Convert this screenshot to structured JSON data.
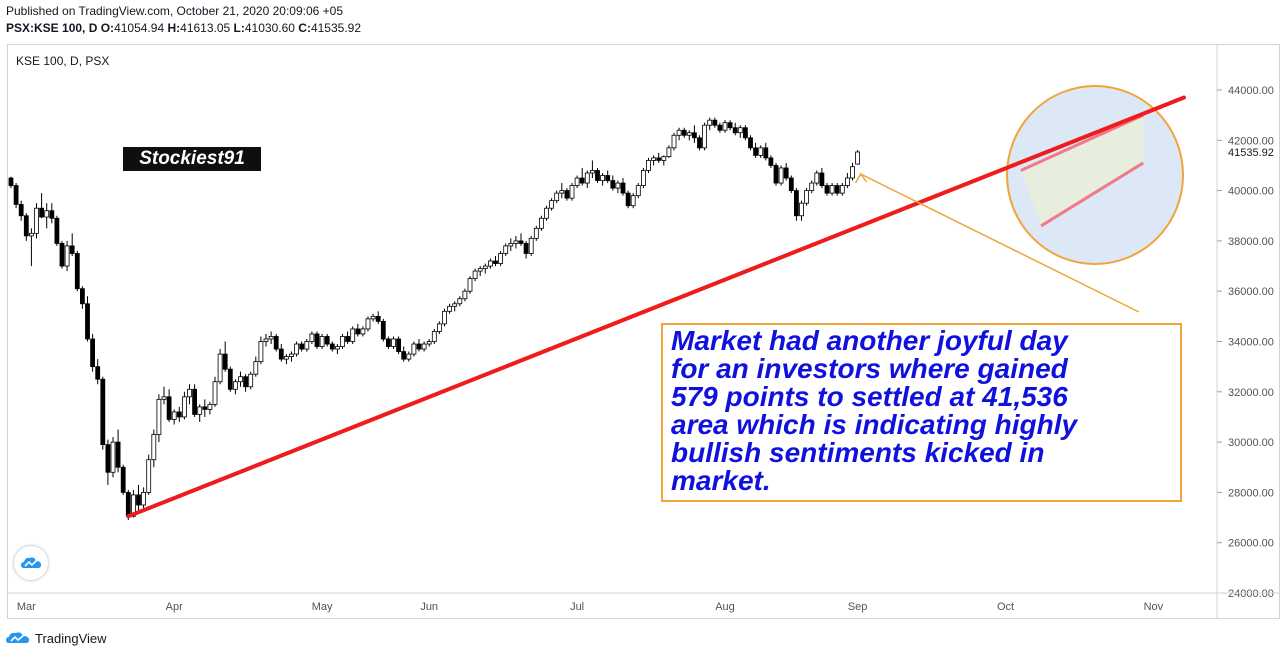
{
  "header": {
    "published": "Published on TradingView.com, October 21, 2020 20:09:06 +05",
    "symbol_line": "PSX:KSE 100, D",
    "o_label": "O:",
    "o_value": "41054.94",
    "h_label": "H:",
    "h_value": "41613.05",
    "l_label": "L:",
    "l_value": "41030.60",
    "c_label": "C:",
    "c_value": "41535.92"
  },
  "chart_label": "KSE 100, D, PSX",
  "watermark": "Stockiest91",
  "annotation": [
    "Market had another joyful day",
    "for an investors where gained",
    "579 points to settled at 41,536",
    "area which is indicating highly",
    "bullish sentiments kicked in",
    "market."
  ],
  "footer": {
    "brand": "TradingView"
  },
  "colors": {
    "trendline": "#ee1c1c",
    "channel": "#f07a8a",
    "circle_fill": "#dde8f6",
    "circle_stroke": "#f0a43a",
    "arrow": "#f0a43a",
    "annotation_text": "#1111dd",
    "annotation_border": "#f0a43a"
  },
  "chart_data": {
    "type": "candlestick",
    "title": "KSE 100, D, PSX",
    "ylim": [
      24000,
      45400
    ],
    "y_ticks": [
      24000,
      26000,
      28000,
      30000,
      32000,
      34000,
      36000,
      38000,
      40000,
      42000,
      44000
    ],
    "y_tick_labels": [
      "24000.00",
      "26000.00",
      "28000.00",
      "30000.00",
      "32000.00",
      "34000.00",
      "36000.00",
      "38000.00",
      "40000.00",
      "42000.00",
      "44000.00"
    ],
    "last_price_label": "41535.92",
    "last_price": 41535.92,
    "x_month_labels": [
      {
        "label": "Mar",
        "day": 3
      },
      {
        "label": "Apr",
        "day": 32
      },
      {
        "label": "May",
        "day": 61
      },
      {
        "label": "Jun",
        "day": 82
      },
      {
        "label": "Jul",
        "day": 111
      },
      {
        "label": "Aug",
        "day": 140
      },
      {
        "label": "Sep",
        "day": 166
      },
      {
        "label": "Oct",
        "day": 195
      },
      {
        "label": "Nov",
        "day": 224
      }
    ],
    "candles_ohlc": [
      [
        40500,
        40550,
        40100,
        40200
      ],
      [
        40200,
        40300,
        39300,
        39450
      ],
      [
        39450,
        39600,
        38800,
        39000
      ],
      [
        39000,
        39100,
        38000,
        38200
      ],
      [
        38200,
        38500,
        37000,
        38300
      ],
      [
        38300,
        39500,
        38100,
        39300
      ],
      [
        39300,
        39900,
        38900,
        38950
      ],
      [
        38950,
        39500,
        38500,
        39200
      ],
      [
        39200,
        39500,
        38700,
        38900
      ],
      [
        38900,
        39000,
        37800,
        37900
      ],
      [
        37900,
        38000,
        36900,
        37000
      ],
      [
        37000,
        38000,
        36800,
        37800
      ],
      [
        37800,
        38300,
        37400,
        37500
      ],
      [
        37500,
        37600,
        36000,
        36100
      ],
      [
        36100,
        36200,
        35300,
        35500
      ],
      [
        35500,
        35800,
        34000,
        34100
      ],
      [
        34100,
        34300,
        32800,
        33000
      ],
      [
        33000,
        33300,
        32300,
        32500
      ],
      [
        32500,
        32600,
        29700,
        29900
      ],
      [
        29900,
        30100,
        28300,
        28800
      ],
      [
        28800,
        30200,
        28600,
        30000
      ],
      [
        30000,
        30500,
        28800,
        29000
      ],
      [
        29000,
        29100,
        27900,
        28000
      ],
      [
        28000,
        28100,
        26900,
        27050
      ],
      [
        27050,
        28100,
        27000,
        27900
      ],
      [
        27900,
        28300,
        27300,
        27500
      ],
      [
        27500,
        28200,
        27300,
        28000
      ],
      [
        28000,
        29500,
        27900,
        29300
      ],
      [
        29300,
        30500,
        29000,
        30300
      ],
      [
        30300,
        31900,
        30000,
        31700
      ],
      [
        31700,
        32200,
        31500,
        31800
      ],
      [
        31800,
        32100,
        30800,
        30900
      ],
      [
        30900,
        31300,
        30700,
        31200
      ],
      [
        31200,
        31400,
        30800,
        31000
      ],
      [
        31000,
        32000,
        30900,
        31800
      ],
      [
        31800,
        32300,
        31500,
        32100
      ],
      [
        32100,
        32300,
        31000,
        31100
      ],
      [
        31100,
        31500,
        30800,
        31400
      ],
      [
        31400,
        31700,
        31000,
        31300
      ],
      [
        31300,
        31600,
        31100,
        31500
      ],
      [
        31500,
        32600,
        31400,
        32400
      ],
      [
        32400,
        33700,
        32300,
        33500
      ],
      [
        33500,
        34000,
        32800,
        32900
      ],
      [
        32900,
        33000,
        32000,
        32100
      ],
      [
        32100,
        32500,
        31900,
        32400
      ],
      [
        32400,
        32800,
        32200,
        32600
      ],
      [
        32600,
        32700,
        32000,
        32200
      ],
      [
        32200,
        32800,
        32100,
        32700
      ],
      [
        32700,
        33400,
        32600,
        33200
      ],
      [
        33200,
        34200,
        33100,
        34000
      ],
      [
        34000,
        34300,
        33800,
        34100
      ],
      [
        34100,
        34400,
        33900,
        34200
      ],
      [
        34200,
        34300,
        33600,
        33700
      ],
      [
        33700,
        33900,
        33200,
        33300
      ],
      [
        33300,
        33500,
        33100,
        33400
      ],
      [
        33400,
        33600,
        33200,
        33500
      ],
      [
        33500,
        34000,
        33400,
        33900
      ],
      [
        33900,
        34000,
        33600,
        33700
      ],
      [
        33700,
        34100,
        33600,
        34000
      ],
      [
        34000,
        34400,
        33900,
        34300
      ],
      [
        34300,
        34400,
        33700,
        33800
      ],
      [
        33800,
        34300,
        33700,
        34200
      ],
      [
        34200,
        34300,
        33800,
        33900
      ],
      [
        33900,
        34000,
        33600,
        33700
      ],
      [
        33700,
        33900,
        33500,
        33800
      ],
      [
        33800,
        34300,
        33700,
        34200
      ],
      [
        34200,
        34400,
        33900,
        34000
      ],
      [
        34000,
        34600,
        33900,
        34500
      ],
      [
        34500,
        34700,
        34200,
        34300
      ],
      [
        34300,
        34600,
        34200,
        34500
      ],
      [
        34500,
        35000,
        34400,
        34900
      ],
      [
        34900,
        35100,
        34800,
        35000
      ],
      [
        35000,
        35200,
        34700,
        34800
      ],
      [
        34800,
        34900,
        34000,
        34100
      ],
      [
        34100,
        34200,
        33700,
        33800
      ],
      [
        33800,
        34200,
        33700,
        34100
      ],
      [
        34100,
        34200,
        33500,
        33600
      ],
      [
        33600,
        33800,
        33200,
        33300
      ],
      [
        33300,
        33600,
        33200,
        33500
      ],
      [
        33500,
        34000,
        33400,
        33900
      ],
      [
        33900,
        34100,
        33600,
        33700
      ],
      [
        33700,
        34000,
        33600,
        33900
      ],
      [
        33900,
        34100,
        33800,
        34000
      ],
      [
        34000,
        34500,
        33900,
        34400
      ],
      [
        34400,
        34800,
        34300,
        34700
      ],
      [
        34700,
        35300,
        34600,
        35200
      ],
      [
        35200,
        35500,
        35100,
        35400
      ],
      [
        35400,
        35600,
        35200,
        35500
      ],
      [
        35500,
        35800,
        35400,
        35700
      ],
      [
        35700,
        36100,
        35600,
        36000
      ],
      [
        36000,
        36600,
        35900,
        36500
      ],
      [
        36500,
        36900,
        36400,
        36800
      ],
      [
        36800,
        37000,
        36600,
        36900
      ],
      [
        36900,
        37100,
        36700,
        37000
      ],
      [
        37000,
        37300,
        36900,
        37200
      ],
      [
        37200,
        37400,
        37000,
        37100
      ],
      [
        37100,
        37600,
        37000,
        37500
      ],
      [
        37500,
        37900,
        37400,
        37800
      ],
      [
        37800,
        38100,
        37600,
        37900
      ],
      [
        37900,
        38200,
        37700,
        38000
      ],
      [
        38000,
        38300,
        37800,
        37900
      ],
      [
        37900,
        38000,
        37300,
        37500
      ],
      [
        37500,
        38200,
        37400,
        38100
      ],
      [
        38100,
        38600,
        38000,
        38500
      ],
      [
        38500,
        39000,
        38400,
        38900
      ],
      [
        38900,
        39400,
        38800,
        39300
      ],
      [
        39300,
        39700,
        39200,
        39600
      ],
      [
        39600,
        40000,
        39500,
        39900
      ],
      [
        39900,
        40300,
        39700,
        40000
      ],
      [
        40000,
        40100,
        39600,
        39700
      ],
      [
        39700,
        40300,
        39600,
        40200
      ],
      [
        40200,
        40600,
        40100,
        40500
      ],
      [
        40500,
        40900,
        40200,
        40300
      ],
      [
        40300,
        40800,
        40100,
        40700
      ],
      [
        40700,
        41200,
        40500,
        40800
      ],
      [
        40800,
        40900,
        40300,
        40400
      ],
      [
        40400,
        40700,
        40200,
        40600
      ],
      [
        40600,
        40800,
        40300,
        40400
      ],
      [
        40400,
        40600,
        40000,
        40100
      ],
      [
        40100,
        40400,
        39900,
        40300
      ],
      [
        40300,
        40500,
        39800,
        39900
      ],
      [
        39900,
        40000,
        39300,
        39400
      ],
      [
        39400,
        39900,
        39300,
        39800
      ],
      [
        39800,
        40300,
        39700,
        40200
      ],
      [
        40200,
        40900,
        40100,
        40800
      ],
      [
        40800,
        41300,
        40700,
        41200
      ],
      [
        41200,
        41400,
        41000,
        41300
      ],
      [
        41300,
        41500,
        41100,
        41200
      ],
      [
        41200,
        41400,
        41000,
        41350
      ],
      [
        41350,
        41800,
        41300,
        41700
      ],
      [
        41700,
        42300,
        41600,
        42200
      ],
      [
        42200,
        42500,
        42000,
        42400
      ],
      [
        42400,
        42500,
        42100,
        42200
      ],
      [
        42200,
        42400,
        42000,
        42300
      ],
      [
        42300,
        42600,
        41900,
        42100
      ],
      [
        42100,
        42200,
        41600,
        41700
      ],
      [
        41700,
        42700,
        41600,
        42600
      ],
      [
        42600,
        42900,
        42400,
        42800
      ],
      [
        42800,
        42900,
        42500,
        42600
      ],
      [
        42600,
        42700,
        42300,
        42400
      ],
      [
        42400,
        42800,
        42300,
        42700
      ],
      [
        42700,
        42800,
        42400,
        42500
      ],
      [
        42500,
        42700,
        42200,
        42300
      ],
      [
        42300,
        42600,
        42100,
        42500
      ],
      [
        42500,
        42600,
        42000,
        42100
      ],
      [
        42100,
        42200,
        41600,
        41700
      ],
      [
        41700,
        41900,
        41300,
        41400
      ],
      [
        41400,
        41800,
        41300,
        41700
      ],
      [
        41700,
        41900,
        41200,
        41300
      ],
      [
        41300,
        41400,
        40900,
        41000
      ],
      [
        41000,
        41100,
        40200,
        40300
      ],
      [
        40300,
        41000,
        40200,
        40900
      ],
      [
        40900,
        41100,
        40400,
        40500
      ],
      [
        40500,
        40600,
        39900,
        40000
      ],
      [
        40000,
        40100,
        38800,
        39000
      ],
      [
        39000,
        39600,
        38800,
        39500
      ],
      [
        39500,
        40100,
        39400,
        40000
      ],
      [
        40000,
        40400,
        39900,
        40300
      ],
      [
        40300,
        40800,
        40200,
        40700
      ],
      [
        40700,
        40900,
        40100,
        40200
      ],
      [
        40200,
        40300,
        39800,
        39900
      ],
      [
        39900,
        40300,
        39800,
        40200
      ],
      [
        40200,
        40300,
        39800,
        39900
      ],
      [
        39900,
        40300,
        39800,
        40200
      ],
      [
        40200,
        40700,
        40100,
        40500
      ],
      [
        40500,
        41100,
        40400,
        40950
      ],
      [
        41054.94,
        41613.05,
        41030.6,
        41535.92
      ]
    ],
    "trendlines": [
      {
        "name": "support",
        "from": {
          "day": 23,
          "price": 27050
        },
        "to": {
          "day": 230,
          "price": 43700
        }
      },
      {
        "name": "channel-upper",
        "from": {
          "day": 198,
          "price": 40800
        },
        "to": {
          "day": 222,
          "price": 43000
        }
      },
      {
        "name": "channel-lower",
        "from": {
          "day": 202,
          "price": 38600
        },
        "to": {
          "day": 222,
          "price": 41100
        }
      }
    ]
  }
}
